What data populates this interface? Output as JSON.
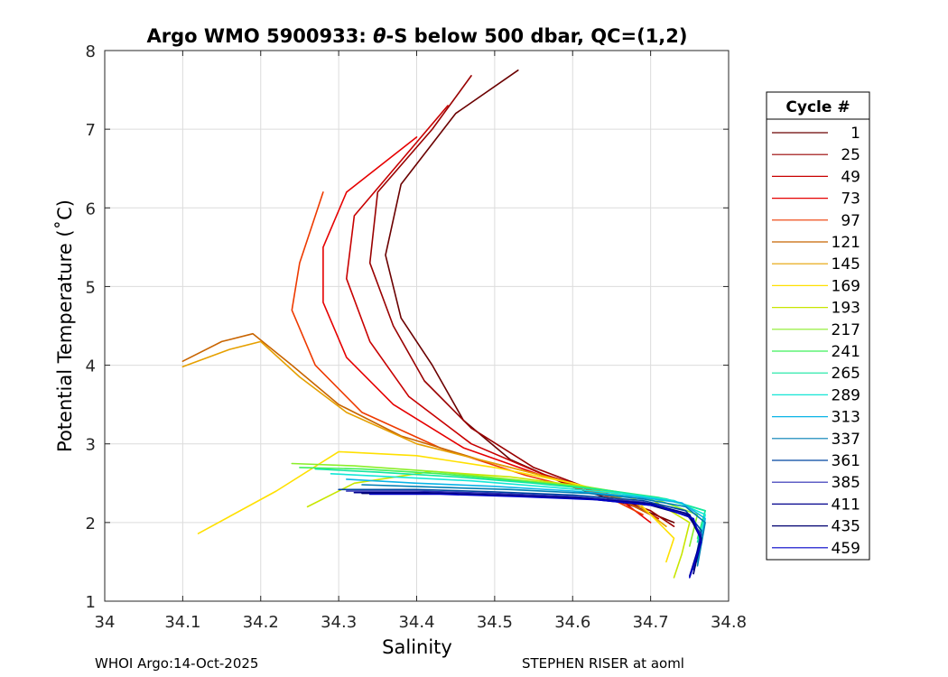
{
  "chart_data": {
    "type": "line",
    "title_prefix": "Argo WMO 5900933: ",
    "title_symbol": "θ",
    "title_suffix": "-S below 500 dbar,  QC=(1,2)",
    "xlabel": "Salinity",
    "ylabel": "Potential Temperature (˚C)",
    "xlim": [
      34.0,
      34.8
    ],
    "ylim": [
      1,
      8
    ],
    "xticks": [
      "34",
      "34.1",
      "34.2",
      "34.3",
      "34.4",
      "34.5",
      "34.6",
      "34.7",
      "34.8"
    ],
    "yticks": [
      "1",
      "2",
      "3",
      "4",
      "5",
      "6",
      "7",
      "8"
    ],
    "grid": true,
    "legend": {
      "title": "Cycle #",
      "position": "right",
      "entries": [
        {
          "label": "1",
          "color": "#6b0000"
        },
        {
          "label": "25",
          "color": "#990000"
        },
        {
          "label": "49",
          "color": "#c80000"
        },
        {
          "label": "73",
          "color": "#e60000"
        },
        {
          "label": "97",
          "color": "#ee3a00"
        },
        {
          "label": "121",
          "color": "#c86400"
        },
        {
          "label": "145",
          "color": "#e6a000"
        },
        {
          "label": "169",
          "color": "#ffe000"
        },
        {
          "label": "193",
          "color": "#c8e600"
        },
        {
          "label": "217",
          "color": "#8aee2a"
        },
        {
          "label": "241",
          "color": "#3ef05a"
        },
        {
          "label": "265",
          "color": "#14e6a0"
        },
        {
          "label": "289",
          "color": "#14e6d6"
        },
        {
          "label": "313",
          "color": "#0ab4e6"
        },
        {
          "label": "337",
          "color": "#007eb4"
        },
        {
          "label": "361",
          "color": "#0046a0"
        },
        {
          "label": "385",
          "color": "#2a2ab4"
        },
        {
          "label": "411",
          "color": "#00008c"
        },
        {
          "label": "435",
          "color": "#000070"
        },
        {
          "label": "459",
          "color": "#0000c8"
        }
      ]
    },
    "series": [
      {
        "name": "1",
        "color": "#6b0000",
        "points": [
          [
            34.53,
            7.75
          ],
          [
            34.45,
            7.2
          ],
          [
            34.38,
            6.3
          ],
          [
            34.36,
            5.4
          ],
          [
            34.38,
            4.6
          ],
          [
            34.42,
            4.0
          ],
          [
            34.46,
            3.3
          ],
          [
            34.52,
            2.8
          ],
          [
            34.6,
            2.45
          ],
          [
            34.68,
            2.2
          ],
          [
            34.73,
            2.0
          ]
        ]
      },
      {
        "name": "25",
        "color": "#990000",
        "points": [
          [
            34.47,
            7.68
          ],
          [
            34.42,
            7.0
          ],
          [
            34.35,
            6.2
          ],
          [
            34.34,
            5.3
          ],
          [
            34.37,
            4.5
          ],
          [
            34.41,
            3.8
          ],
          [
            34.47,
            3.2
          ],
          [
            34.55,
            2.7
          ],
          [
            34.63,
            2.4
          ],
          [
            34.7,
            2.15
          ],
          [
            34.73,
            1.95
          ]
        ]
      },
      {
        "name": "49",
        "color": "#c80000",
        "points": [
          [
            34.44,
            7.3
          ],
          [
            34.38,
            6.6
          ],
          [
            34.32,
            5.9
          ],
          [
            34.31,
            5.1
          ],
          [
            34.34,
            4.3
          ],
          [
            34.39,
            3.6
          ],
          [
            34.47,
            3.0
          ],
          [
            34.56,
            2.62
          ],
          [
            34.65,
            2.35
          ],
          [
            34.71,
            2.05
          ]
        ]
      },
      {
        "name": "73",
        "color": "#e60000",
        "points": [
          [
            34.4,
            6.9
          ],
          [
            34.31,
            6.2
          ],
          [
            34.28,
            5.5
          ],
          [
            34.28,
            4.8
          ],
          [
            34.31,
            4.1
          ],
          [
            34.37,
            3.5
          ],
          [
            34.46,
            2.95
          ],
          [
            34.56,
            2.6
          ],
          [
            34.66,
            2.3
          ],
          [
            34.7,
            2.0
          ]
        ]
      },
      {
        "name": "97",
        "color": "#ee3a00",
        "points": [
          [
            34.28,
            6.2
          ],
          [
            34.25,
            5.3
          ],
          [
            34.24,
            4.7
          ],
          [
            34.27,
            4.0
          ],
          [
            34.33,
            3.4
          ],
          [
            34.43,
            2.95
          ],
          [
            34.54,
            2.6
          ],
          [
            34.64,
            2.35
          ],
          [
            34.69,
            2.1
          ]
        ]
      },
      {
        "name": "121",
        "color": "#c86400",
        "points": [
          [
            34.1,
            4.05
          ],
          [
            34.15,
            4.3
          ],
          [
            34.19,
            4.4
          ],
          [
            34.24,
            4.0
          ],
          [
            34.3,
            3.5
          ],
          [
            34.38,
            3.1
          ],
          [
            34.48,
            2.8
          ],
          [
            34.58,
            2.55
          ],
          [
            34.66,
            2.3
          ],
          [
            34.7,
            2.1
          ]
        ]
      },
      {
        "name": "145",
        "color": "#e6a000",
        "points": [
          [
            34.1,
            3.98
          ],
          [
            34.16,
            4.2
          ],
          [
            34.2,
            4.3
          ],
          [
            34.25,
            3.85
          ],
          [
            34.31,
            3.4
          ],
          [
            34.4,
            3.0
          ],
          [
            34.5,
            2.75
          ],
          [
            34.6,
            2.5
          ],
          [
            34.68,
            2.25
          ],
          [
            34.72,
            1.95
          ]
        ]
      },
      {
        "name": "169",
        "color": "#ffe000",
        "points": [
          [
            34.12,
            1.86
          ],
          [
            34.22,
            2.4
          ],
          [
            34.3,
            2.9
          ],
          [
            34.4,
            2.85
          ],
          [
            34.5,
            2.7
          ],
          [
            34.6,
            2.5
          ],
          [
            34.68,
            2.3
          ],
          [
            34.73,
            1.8
          ],
          [
            34.72,
            1.5
          ]
        ]
      },
      {
        "name": "193",
        "color": "#c8e600",
        "points": [
          [
            34.26,
            2.2
          ],
          [
            34.32,
            2.5
          ],
          [
            34.42,
            2.65
          ],
          [
            34.52,
            2.58
          ],
          [
            34.62,
            2.45
          ],
          [
            34.7,
            2.3
          ],
          [
            34.75,
            2.0
          ],
          [
            34.74,
            1.6
          ],
          [
            34.73,
            1.3
          ]
        ]
      },
      {
        "name": "217",
        "color": "#8aee2a",
        "points": [
          [
            34.24,
            2.75
          ],
          [
            34.32,
            2.72
          ],
          [
            34.42,
            2.65
          ],
          [
            34.52,
            2.55
          ],
          [
            34.62,
            2.45
          ],
          [
            34.7,
            2.32
          ],
          [
            34.76,
            2.1
          ],
          [
            34.75,
            1.7
          ]
        ]
      },
      {
        "name": "241",
        "color": "#3ef05a",
        "points": [
          [
            34.25,
            2.7
          ],
          [
            34.33,
            2.68
          ],
          [
            34.43,
            2.62
          ],
          [
            34.53,
            2.53
          ],
          [
            34.63,
            2.43
          ],
          [
            34.71,
            2.32
          ],
          [
            34.77,
            2.15
          ],
          [
            34.76,
            1.8
          ]
        ]
      },
      {
        "name": "265",
        "color": "#14e6a0",
        "points": [
          [
            34.27,
            2.68
          ],
          [
            34.35,
            2.64
          ],
          [
            34.45,
            2.58
          ],
          [
            34.55,
            2.5
          ],
          [
            34.65,
            2.4
          ],
          [
            34.72,
            2.3
          ],
          [
            34.77,
            2.15
          ],
          [
            34.76,
            1.75
          ]
        ]
      },
      {
        "name": "289",
        "color": "#14e6d6",
        "points": [
          [
            34.29,
            2.62
          ],
          [
            34.37,
            2.58
          ],
          [
            34.47,
            2.53
          ],
          [
            34.57,
            2.45
          ],
          [
            34.66,
            2.37
          ],
          [
            34.73,
            2.28
          ],
          [
            34.77,
            2.1
          ],
          [
            34.76,
            1.6
          ]
        ]
      },
      {
        "name": "313",
        "color": "#0ab4e6",
        "points": [
          [
            34.31,
            2.55
          ],
          [
            34.4,
            2.5
          ],
          [
            34.5,
            2.46
          ],
          [
            34.6,
            2.4
          ],
          [
            34.68,
            2.33
          ],
          [
            34.74,
            2.25
          ],
          [
            34.77,
            2.05
          ],
          [
            34.76,
            1.5
          ]
        ]
      },
      {
        "name": "337",
        "color": "#007eb4",
        "points": [
          [
            34.33,
            2.48
          ],
          [
            34.42,
            2.45
          ],
          [
            34.52,
            2.42
          ],
          [
            34.62,
            2.37
          ],
          [
            34.69,
            2.3
          ],
          [
            34.745,
            2.2
          ],
          [
            34.77,
            2.0
          ],
          [
            34.76,
            1.45
          ]
        ]
      },
      {
        "name": "361",
        "color": "#0046a0",
        "points": [
          [
            34.3,
            2.42
          ],
          [
            34.4,
            2.42
          ],
          [
            34.5,
            2.39
          ],
          [
            34.6,
            2.35
          ],
          [
            34.69,
            2.28
          ],
          [
            34.745,
            2.15
          ],
          [
            34.765,
            1.9
          ],
          [
            34.755,
            1.4
          ]
        ]
      },
      {
        "name": "385",
        "color": "#2a2ab4",
        "points": [
          [
            34.31,
            2.4
          ],
          [
            34.4,
            2.4
          ],
          [
            34.5,
            2.37
          ],
          [
            34.6,
            2.33
          ],
          [
            34.69,
            2.26
          ],
          [
            34.745,
            2.12
          ],
          [
            34.765,
            1.85
          ],
          [
            34.755,
            1.35
          ]
        ]
      },
      {
        "name": "411",
        "color": "#00008c",
        "points": [
          [
            34.32,
            2.38
          ],
          [
            34.41,
            2.38
          ],
          [
            34.51,
            2.35
          ],
          [
            34.61,
            2.31
          ],
          [
            34.7,
            2.24
          ],
          [
            34.75,
            2.1
          ],
          [
            34.765,
            1.8
          ],
          [
            34.75,
            1.32
          ]
        ]
      },
      {
        "name": "435",
        "color": "#000070",
        "points": [
          [
            34.33,
            2.37
          ],
          [
            34.42,
            2.37
          ],
          [
            34.52,
            2.34
          ],
          [
            34.62,
            2.3
          ],
          [
            34.7,
            2.22
          ],
          [
            34.75,
            2.08
          ],
          [
            34.765,
            1.78
          ],
          [
            34.755,
            1.35
          ]
        ]
      },
      {
        "name": "459",
        "color": "#0000c8",
        "points": [
          [
            34.34,
            2.36
          ],
          [
            34.43,
            2.36
          ],
          [
            34.53,
            2.33
          ],
          [
            34.63,
            2.29
          ],
          [
            34.71,
            2.21
          ],
          [
            34.755,
            2.05
          ],
          [
            34.765,
            1.75
          ],
          [
            34.75,
            1.3
          ]
        ]
      }
    ]
  },
  "footer": {
    "left": "WHOI Argo:14-Oct-2025",
    "right": "STEPHEN RISER at aoml"
  }
}
